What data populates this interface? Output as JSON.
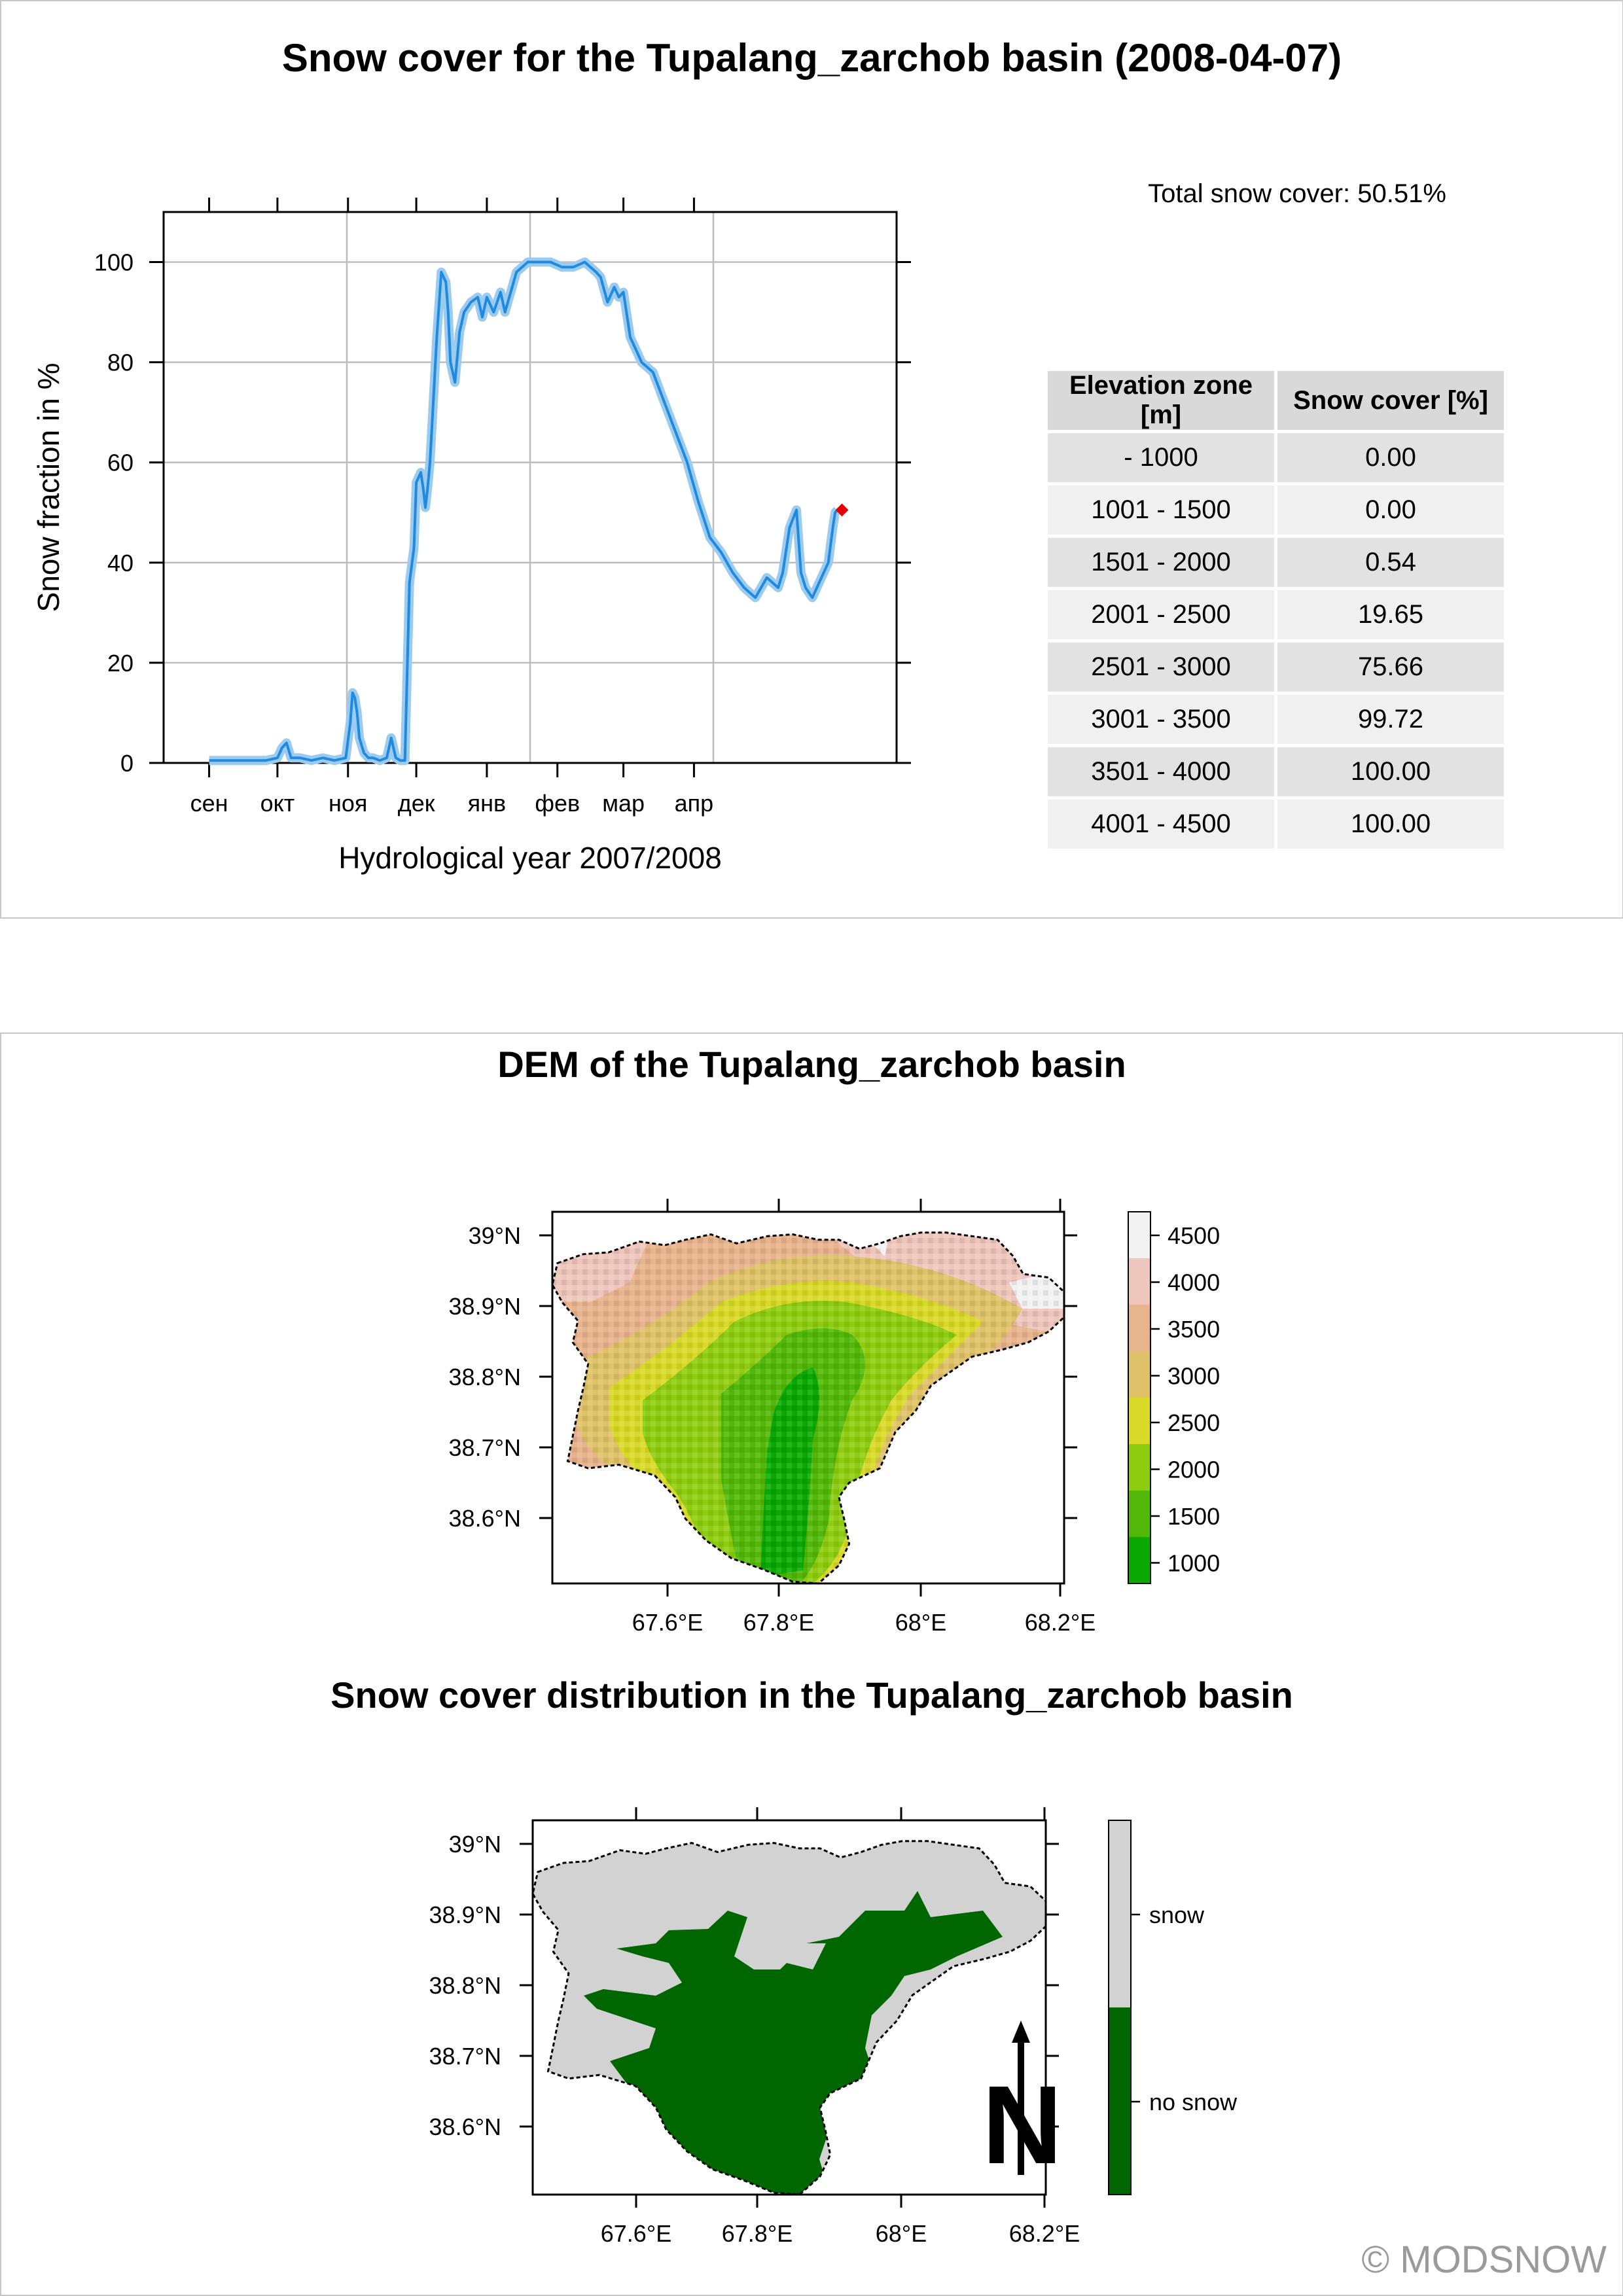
{
  "chart_data": [
    {
      "type": "line",
      "title": "Snow cover for the Tupalang_zarchob basin (2008-04-07)",
      "xlabel": "Hydrological year 2007/2008",
      "ylabel": "Snow fraction in %",
      "ylim": [
        0,
        110
      ],
      "yticks": [
        0,
        20,
        40,
        60,
        80,
        100
      ],
      "x_ticklabels": [
        "сен",
        "окт",
        "ноя",
        "дек",
        "янв",
        "фев",
        "мар",
        "апр"
      ],
      "grid": true,
      "series": [
        {
          "x": [
            0,
            5,
            10,
            15,
            20,
            25,
            30,
            32,
            34,
            36,
            40,
            45,
            50,
            55,
            60,
            62,
            63,
            64,
            65,
            66,
            68,
            70,
            72,
            75,
            78,
            80,
            82,
            84,
            85,
            86,
            88,
            90,
            91,
            93,
            94,
            95,
            96,
            97,
            98,
            100,
            102,
            104,
            105,
            106,
            108,
            110,
            112,
            115,
            118,
            120,
            122,
            125,
            128,
            130,
            135,
            140,
            145,
            150,
            155,
            160,
            165,
            170,
            172,
            175,
            178,
            180,
            182,
            185,
            188,
            190,
            195,
            200,
            205,
            210,
            215,
            220,
            225,
            230,
            235,
            240,
            245,
            250,
            252,
            255,
            258,
            260,
            262,
            265,
            268,
            270,
            272,
            274,
            275,
            276
          ],
          "values": [
            0.5,
            0.5,
            0.5,
            0.5,
            0.5,
            0.5,
            1,
            3,
            4,
            1,
            1,
            0.5,
            1,
            0.5,
            1,
            8,
            14,
            13,
            10,
            5,
            2,
            1,
            1,
            0.5,
            1,
            5,
            1,
            0.5,
            0.5,
            0.5,
            36,
            43,
            56,
            58,
            55,
            51,
            55,
            60,
            68,
            85,
            98,
            96,
            90,
            80,
            76,
            86,
            90,
            92,
            93,
            89,
            93,
            90,
            94,
            90,
            98,
            100,
            100,
            100,
            99,
            99,
            100,
            98,
            97,
            92,
            95,
            93,
            94,
            85,
            82,
            80,
            78,
            72,
            66,
            60,
            52,
            45,
            42,
            38,
            35,
            33,
            37,
            35,
            38,
            47,
            50.51,
            38,
            35,
            33,
            36,
            38,
            40,
            47,
            50,
            50.51
          ],
          "current_value": 50.51
        }
      ]
    },
    {
      "type": "heatmap",
      "title": "DEM of the Tupalang_zarchob basin",
      "x_ticklabels": [
        "67.6°E",
        "67.8°E",
        "68°E",
        "68.2°E"
      ],
      "y_ticklabels": [
        "39°N",
        "38.9°N",
        "38.8°N",
        "38.7°N",
        "38.6°N"
      ],
      "colorbar_labels": [
        "4500",
        "4000",
        "3500",
        "3000",
        "2500",
        "2000",
        "1500",
        "1000"
      ],
      "colors": [
        "#f2f2f2",
        "#efc6bc",
        "#e8b48e",
        "#dfc268",
        "#d9da28",
        "#8ecc10",
        "#52b808",
        "#0aa802"
      ]
    },
    {
      "type": "heatmap",
      "title": "Snow cover distribution in the Tupalang_zarchob basin",
      "x_ticklabels": [
        "67.6°E",
        "67.8°E",
        "68°E",
        "68.2°E"
      ],
      "y_ticklabels": [
        "39°N",
        "38.9°N",
        "38.8°N",
        "38.7°N",
        "38.6°N"
      ],
      "legend": [
        "snow",
        "no snow"
      ],
      "colors": {
        "snow": "#d2d2d2",
        "no_snow": "#006600"
      }
    }
  ],
  "summary": {
    "total_snow_cover": "Total snow cover: 50.51%"
  },
  "table": {
    "headers": [
      "Elevation zone [m]",
      "Snow cover [%]"
    ],
    "rows": [
      [
        "- 1000",
        "0.00"
      ],
      [
        "1001 - 1500",
        "0.00"
      ],
      [
        "1501 - 2000",
        "0.54"
      ],
      [
        "2001 - 2500",
        "19.65"
      ],
      [
        "2501 - 3000",
        "75.66"
      ],
      [
        "3001 - 3500",
        "99.72"
      ],
      [
        "3501 - 4000",
        "100.00"
      ],
      [
        "4001 - 4500",
        "100.00"
      ]
    ]
  },
  "copyright": "© MODSNOW",
  "north_arrow": "N",
  "line_color": "#1f8ae0",
  "marker_color": "#e60000"
}
